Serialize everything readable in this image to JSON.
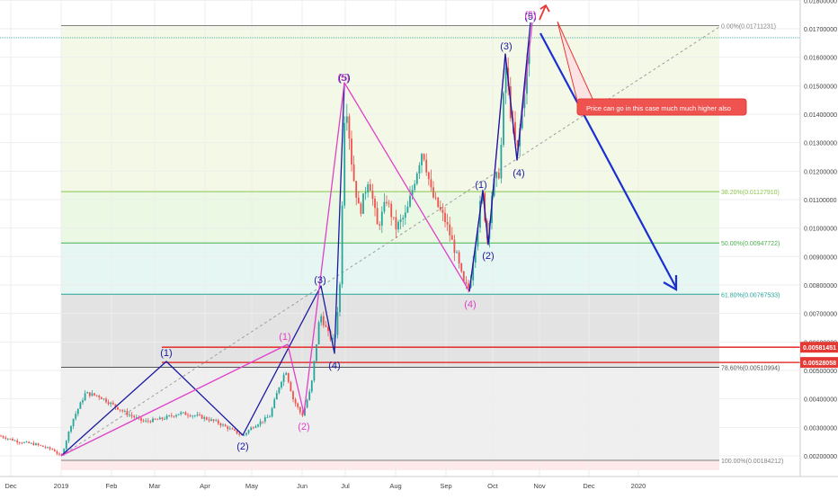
{
  "chart_data": {
    "type": "candlestick",
    "title": "",
    "x_ticks": [
      "Dec",
      "2019",
      "Feb",
      "Mar",
      "Apr",
      "May",
      "Jun",
      "Jul",
      "Aug",
      "Sep",
      "Oct",
      "Nov",
      "Dec",
      "2020"
    ],
    "y_ticks": [
      "0.01800000",
      "0.01700000",
      "0.01600000",
      "0.01500000",
      "0.01400000",
      "0.01300000",
      "0.01200000",
      "0.01100000",
      "0.01000000",
      "0.00900000",
      "0.00800000",
      "0.00700000",
      "0.00600000",
      "0.00500000",
      "0.00400000",
      "0.00300000",
      "0.00200000"
    ],
    "ylim": [
      0.0015,
      0.018
    ],
    "grid": true,
    "fib_levels": [
      {
        "label": "0.00%(0.01711231)",
        "value": 0.01711231,
        "color": "#808080"
      },
      {
        "label": "38.20%(0.01127910)",
        "value": 0.0112791,
        "color": "#8bc34a"
      },
      {
        "label": "50.00%(0.00947722)",
        "value": 0.00947722,
        "color": "#4caf50"
      },
      {
        "label": "61.80%(0.00767533)",
        "value": 0.00767533,
        "color": "#26a69a"
      },
      {
        "label": "78.60%(0.00510994)",
        "value": 0.00510994,
        "color": "#555555"
      },
      {
        "label": "100.00%(0.00184212)",
        "value": 0.00184212,
        "color": "#808080"
      }
    ],
    "horizontal_lines": [
      {
        "label": "0.00581451",
        "value": 0.00581451,
        "color": "#e53935"
      },
      {
        "label": "0.00528058",
        "value": 0.00528058,
        "color": "#e53935"
      }
    ],
    "wave_labels_blue": [
      "(1)",
      "(2)",
      "(3)",
      "(4)",
      "(5)",
      "(1)",
      "(2)",
      "(3)",
      "(4)",
      "(5)"
    ],
    "wave_labels_pink": [
      "(1)",
      "(2)",
      "(5)",
      "(4)",
      "(5)"
    ],
    "callout": "Price can go in this case much much higher also",
    "colors": {
      "up": "#26a69a",
      "down": "#ef5350",
      "blue_wave": "#1a1aa0",
      "pink_wave": "#e040c8",
      "projection": "#1a2fd0",
      "red": "#e53935"
    }
  }
}
